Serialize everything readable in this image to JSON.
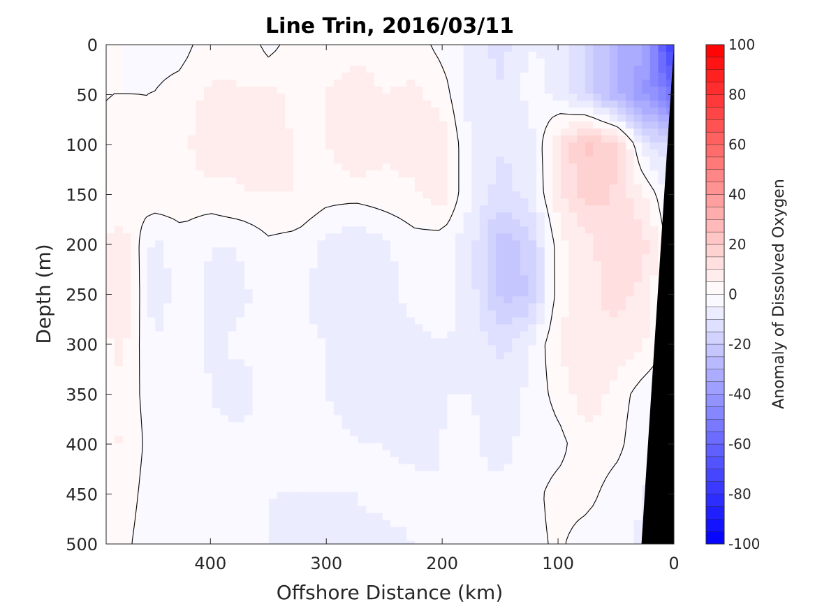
{
  "chart_data": {
    "type": "heatmap",
    "title": "Line Trin, 2016/03/11",
    "xlabel": "Offshore Distance (km)",
    "ylabel": "Depth (m)",
    "colorbar_label": "Anomaly of Dissolved Oxygen",
    "xlim": [
      490,
      0
    ],
    "ylim": [
      500,
      0
    ],
    "clim": [
      -100,
      100
    ],
    "x_ticks": [
      400,
      300,
      200,
      100,
      0
    ],
    "y_ticks": [
      0,
      50,
      100,
      150,
      200,
      250,
      300,
      350,
      400,
      450,
      500
    ],
    "colorbar_ticks": [
      100,
      80,
      60,
      40,
      20,
      0,
      -20,
      -40,
      -60,
      -80,
      -100
    ],
    "colormap": {
      "negative": "#0000ff",
      "zero": "#ffffff",
      "positive": "#ff0000",
      "levels": 40
    },
    "bathymetry_color": "#000000",
    "contour_color": "#000000",
    "field": {
      "x": [
        0,
        25,
        50,
        75,
        100,
        125,
        150,
        175,
        200,
        225,
        250,
        275,
        300,
        325,
        350,
        375,
        400,
        425,
        450,
        475,
        490
      ],
      "y": [
        0,
        50,
        100,
        150,
        200,
        250,
        300,
        350,
        400,
        450,
        500
      ],
      "z": [
        [
          -80,
          -35,
          -30,
          -15,
          -6,
          -5,
          -12,
          -6,
          -2,
          3,
          2,
          3,
          2,
          3,
          -2,
          5,
          3,
          -2,
          -2,
          0,
          0
        ],
        [
          -55,
          -40,
          -30,
          -15,
          -6,
          -3,
          -10,
          -8,
          3,
          6,
          5,
          8,
          5,
          4,
          6,
          5,
          6,
          2,
          0,
          0,
          0
        ],
        [
          -15,
          -10,
          18,
          22,
          10,
          -8,
          -10,
          -6,
          8,
          8,
          6,
          10,
          5,
          4,
          8,
          5,
          10,
          3,
          0,
          4,
          0
        ],
        [
          -8,
          5,
          14,
          18,
          8,
          -8,
          -12,
          -6,
          8,
          4,
          3,
          2,
          2,
          5,
          5,
          5,
          3,
          3,
          4,
          0,
          0
        ],
        [
          -5,
          12,
          15,
          8,
          3,
          -18,
          -25,
          -8,
          -3,
          -2,
          -6,
          -10,
          -6,
          -2,
          -1,
          -5,
          -5,
          -2,
          -7,
          8,
          6
        ],
        [
          -5,
          8,
          12,
          8,
          3,
          -20,
          -22,
          -8,
          -2,
          -2,
          -8,
          -10,
          -8,
          -3,
          -3,
          -6,
          -6,
          -3,
          -8,
          10,
          8
        ],
        [
          -2,
          5,
          8,
          10,
          5,
          -6,
          -12,
          -6,
          -5,
          -7,
          -8,
          -10,
          -5,
          -4,
          -5,
          -4,
          -6,
          -2,
          -5,
          6,
          4
        ],
        [
          -6,
          -3,
          3,
          8,
          2,
          -4,
          -8,
          -5,
          -5,
          -6,
          -6,
          -6,
          -5,
          -5,
          -3,
          -7,
          -5,
          -2,
          -4,
          5,
          3
        ],
        [
          -4,
          -5,
          2,
          4,
          -2,
          -3,
          -7,
          -4,
          -5,
          -6,
          -5,
          -5,
          -4,
          -4,
          -4,
          -4,
          -4,
          -2,
          -3,
          6,
          3
        ],
        [
          -8,
          -5,
          -3,
          2,
          2,
          -2,
          -4,
          -4,
          -5,
          -4,
          -4,
          -5,
          -5,
          -5,
          -5,
          -5,
          -4,
          -3,
          -4,
          4,
          2
        ],
        [
          -10,
          -6,
          -4,
          -3,
          1,
          -2,
          -5,
          -5,
          -5,
          -5,
          -6,
          -6,
          -6,
          -7,
          -5,
          -5,
          -4,
          -5,
          -5,
          2,
          1
        ]
      ]
    },
    "bathymetry": {
      "distance_at_surface": 0,
      "distance_at_bottom": 28
    }
  }
}
